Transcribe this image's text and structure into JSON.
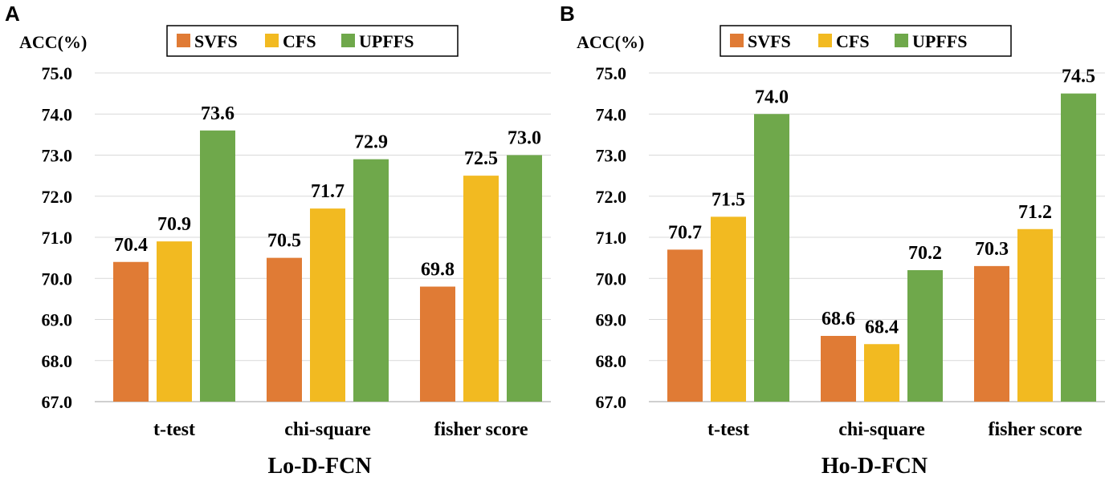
{
  "chart_data": [
    {
      "type": "bar",
      "panel_label": "A",
      "title": "",
      "xlabel": "Lo-D-FCN",
      "ylabel": "ACC(%)",
      "ylim": [
        67.0,
        75.0
      ],
      "yticks": [
        "67.0",
        "68.0",
        "69.0",
        "70.0",
        "71.0",
        "72.0",
        "73.0",
        "74.0",
        "75.0"
      ],
      "grid": true,
      "legend_position": "top",
      "categories": [
        "t-test",
        "chi-square",
        "fisher score"
      ],
      "series": [
        {
          "name": "SVFS",
          "color": "#E07B35",
          "values": [
            70.4,
            70.5,
            69.8
          ],
          "labels": [
            "70.4",
            "70.5",
            "69.8"
          ]
        },
        {
          "name": "CFS",
          "color": "#F2BA21",
          "values": [
            70.9,
            71.7,
            72.5
          ],
          "labels": [
            "70.9",
            "71.7",
            "72.5"
          ]
        },
        {
          "name": "UPFFS",
          "color": "#6FA84B",
          "values": [
            73.6,
            72.9,
            73.0
          ],
          "labels": [
            "73.6",
            "72.9",
            "73.0"
          ]
        }
      ]
    },
    {
      "type": "bar",
      "panel_label": "B",
      "title": "",
      "xlabel": "Ho-D-FCN",
      "ylabel": "ACC(%)",
      "ylim": [
        67.0,
        75.0
      ],
      "yticks": [
        "67.0",
        "68.0",
        "69.0",
        "70.0",
        "71.0",
        "72.0",
        "73.0",
        "74.0",
        "75.0"
      ],
      "grid": true,
      "legend_position": "top",
      "categories": [
        "t-test",
        "chi-square",
        "fisher score"
      ],
      "series": [
        {
          "name": "SVFS",
          "color": "#E07B35",
          "values": [
            70.7,
            68.6,
            70.3
          ],
          "labels": [
            "70.7",
            "68.6",
            "70.3"
          ]
        },
        {
          "name": "CFS",
          "color": "#F2BA21",
          "values": [
            71.5,
            68.4,
            71.2
          ],
          "labels": [
            "71.5",
            "68.4",
            "71.2"
          ]
        },
        {
          "name": "UPFFS",
          "color": "#6FA84B",
          "values": [
            74.0,
            70.2,
            74.5
          ],
          "labels": [
            "74.0",
            "70.2",
            "74.5"
          ]
        }
      ]
    }
  ]
}
